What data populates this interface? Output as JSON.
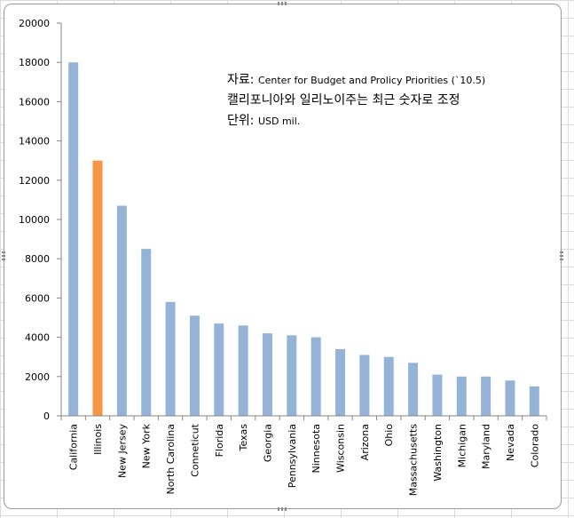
{
  "chart_data": {
    "type": "bar",
    "categories": [
      "California",
      "Illinois",
      "New Jersey",
      "New York",
      "North Carolina",
      "Conneticut",
      "Florida",
      "Texas",
      "Georgia",
      "Pennsylvania",
      "Ninnesota",
      "Wisconsin",
      "Arizona",
      "Ohio",
      "Massachusetts",
      "Washington",
      "Michigan",
      "Maryland",
      "Nevada",
      "Colorado"
    ],
    "values": [
      18000,
      13000,
      10700,
      8500,
      5800,
      5100,
      4700,
      4600,
      4200,
      4100,
      4000,
      3400,
      3100,
      3000,
      2700,
      2100,
      2000,
      2000,
      1800,
      1500
    ],
    "highlight_index": 1,
    "ylim": [
      0,
      20000
    ],
    "yticks": [
      0,
      2000,
      4000,
      6000,
      8000,
      10000,
      12000,
      14000,
      16000,
      18000,
      20000
    ],
    "colors": {
      "bar": "#95b3d7",
      "highlight": "#f79646",
      "axis": "#868686"
    },
    "legend": "none",
    "grid": false,
    "annotation": {
      "line1_prefix": "자료: ",
      "line1_text": "Center for Budget and Prolicy  Priorities (`10.5)",
      "line2": "캘리포니아와 일리노이주는 최근 숫자로 조정",
      "line3_prefix": "단위: ",
      "line3_text": "USD mil."
    }
  }
}
